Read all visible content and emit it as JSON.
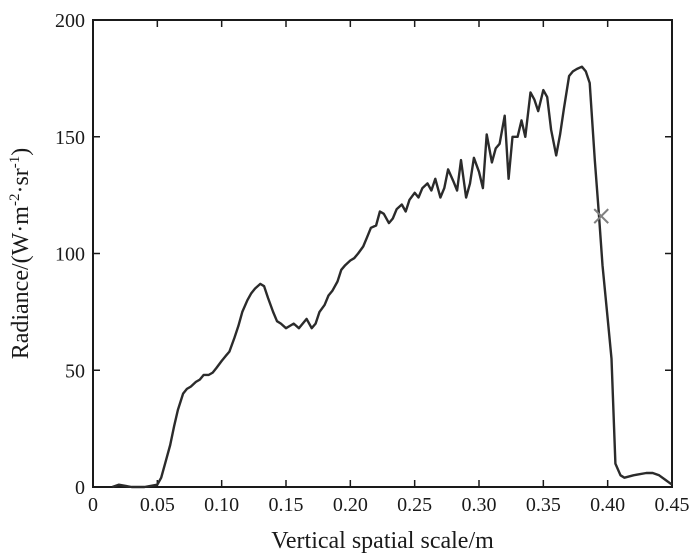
{
  "chart_data": {
    "type": "line",
    "title": "",
    "xlabel": "Vertical spatial scale/m",
    "ylabel_main": "Radiance/(W·m",
    "ylabel_sup1": "-2",
    "ylabel_mid": "·sr",
    "ylabel_sup2": "-1",
    "ylabel_end": ")",
    "xlim": [
      0,
      0.45
    ],
    "ylim": [
      0,
      200
    ],
    "xticks": [
      0,
      0.05,
      0.1,
      0.15,
      0.2,
      0.25,
      0.3,
      0.35,
      0.4,
      0.45
    ],
    "xtick_labels": [
      "0",
      "0.05",
      "0.10",
      "0.15",
      "0.20",
      "0.25",
      "0.30",
      "0.35",
      "0.40",
      "0.45"
    ],
    "yticks": [
      0,
      50,
      100,
      150,
      200
    ],
    "ytick_labels": [
      "0",
      "50",
      "100",
      "150",
      "200"
    ],
    "grid": false,
    "line_color": "#2b2b2b",
    "marker_color": "#808080",
    "series": [
      {
        "x": [
          0.015,
          0.02,
          0.03,
          0.04,
          0.05,
          0.053,
          0.056,
          0.06,
          0.063,
          0.066,
          0.07,
          0.073,
          0.076,
          0.08,
          0.083,
          0.086,
          0.09,
          0.093,
          0.096,
          0.1,
          0.103,
          0.106,
          0.11,
          0.113,
          0.116,
          0.12,
          0.123,
          0.126,
          0.13,
          0.133,
          0.136,
          0.14,
          0.143,
          0.146,
          0.15,
          0.153,
          0.156,
          0.16,
          0.163,
          0.166,
          0.17,
          0.173,
          0.176,
          0.18,
          0.183,
          0.186,
          0.19,
          0.193,
          0.196,
          0.2,
          0.203,
          0.206,
          0.21,
          0.213,
          0.216,
          0.22,
          0.223,
          0.226,
          0.23,
          0.233,
          0.236,
          0.24,
          0.243,
          0.246,
          0.25,
          0.253,
          0.256,
          0.26,
          0.263,
          0.266,
          0.27,
          0.273,
          0.276,
          0.28,
          0.283,
          0.286,
          0.29,
          0.293,
          0.296,
          0.3,
          0.303,
          0.306,
          0.31,
          0.313,
          0.316,
          0.32,
          0.323,
          0.326,
          0.33,
          0.333,
          0.336,
          0.34,
          0.343,
          0.346,
          0.35,
          0.353,
          0.356,
          0.36,
          0.363,
          0.366,
          0.37,
          0.373,
          0.376,
          0.38,
          0.383,
          0.386,
          0.39,
          0.393,
          0.396,
          0.4,
          0.403,
          0.406,
          0.41,
          0.413,
          0.42,
          0.43,
          0.435,
          0.44,
          0.445,
          0.45
        ],
        "y": [
          0,
          1,
          0,
          0,
          1,
          4,
          10,
          18,
          26,
          33,
          40,
          42,
          43,
          45,
          46,
          48,
          48,
          49,
          51,
          54,
          56,
          58,
          64,
          69,
          75,
          80,
          83,
          85,
          87,
          86,
          81,
          75,
          71,
          70,
          68,
          69,
          70,
          68,
          70,
          72,
          68,
          70,
          75,
          78,
          82,
          84,
          88,
          93,
          95,
          97,
          98,
          100,
          103,
          107,
          111,
          112,
          118,
          117,
          113,
          115,
          119,
          121,
          118,
          123,
          126,
          124,
          128,
          130,
          127,
          132,
          124,
          128,
          136,
          131,
          127,
          140,
          124,
          130,
          141,
          135,
          128,
          151,
          139,
          145,
          147,
          159,
          132,
          150,
          150,
          157,
          150,
          169,
          166,
          161,
          170,
          167,
          153,
          142,
          151,
          162,
          176,
          178,
          179,
          180,
          178,
          173,
          140,
          118,
          95,
          72,
          55,
          10,
          5,
          4,
          5,
          6,
          6,
          5,
          3,
          1
        ],
        "color": "#2b2b2b"
      }
    ],
    "annotations": [
      {
        "type": "marker",
        "symbol": "x",
        "x": 0.395,
        "y": 116,
        "color": "#808080"
      }
    ]
  }
}
